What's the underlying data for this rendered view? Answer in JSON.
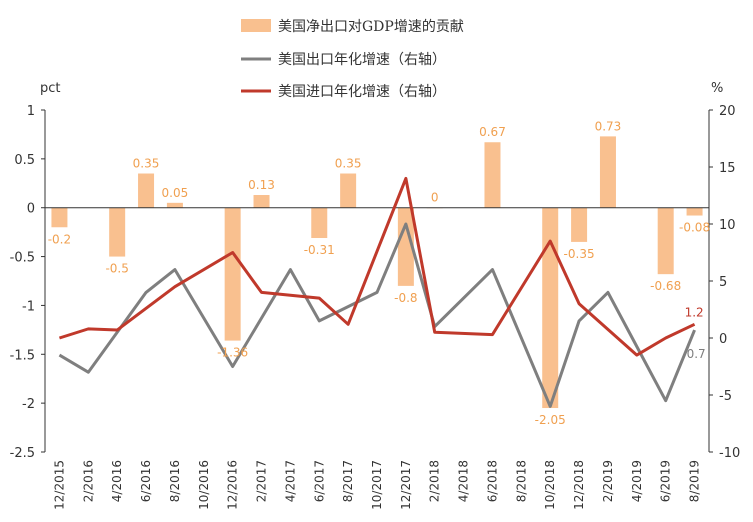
{
  "chart_data": {
    "type": "bar+line",
    "categories": [
      "12/2015",
      "2/2016",
      "4/2016",
      "6/2016",
      "8/2016",
      "10/2016",
      "12/2016",
      "2/2017",
      "4/2017",
      "6/2017",
      "8/2017",
      "10/2017",
      "12/2017",
      "2/2018",
      "4/2018",
      "6/2018",
      "8/2018",
      "10/2018",
      "12/2018",
      "2/2019",
      "4/2019",
      "6/2019",
      "8/2019"
    ],
    "left_axis": {
      "unit": "pct",
      "ylim": [
        -2.5,
        1
      ],
      "ticks": [
        "1",
        "0.5",
        "0",
        "-0.5",
        "-1",
        "-1.5",
        "-2",
        "-2.5"
      ]
    },
    "right_axis": {
      "unit": "%",
      "ylim": [
        -10,
        20
      ],
      "ticks": [
        "20",
        "15",
        "10",
        "5",
        "0",
        "-5",
        "-10"
      ]
    },
    "series": [
      {
        "name": "美国净出口对GDP增速的贡献",
        "kind": "bar",
        "axis": "left",
        "color": "#f9c08f",
        "label_color": "#f0a050",
        "values": [
          -0.2,
          null,
          -0.5,
          0.35,
          0.05,
          null,
          -1.36,
          0.13,
          null,
          -0.31,
          0.35,
          null,
          -0.8,
          0,
          null,
          0.67,
          null,
          -2.05,
          -0.35,
          0.73,
          null,
          -0.68,
          -0.08
        ],
        "labels": [
          "-0.2",
          "",
          "-0.5",
          "0.35",
          "0.05",
          "",
          "-1.36",
          "0.13",
          "",
          "-0.31",
          "0.35",
          "",
          "-0.8",
          "0",
          "",
          "0.67",
          "",
          "-2.05",
          "-0.35",
          "0.73",
          "",
          "-0.68",
          "-0.08"
        ]
      },
      {
        "name": "美国出口年化增速（右轴）",
        "kind": "line",
        "axis": "right",
        "color": "#7f7f7f",
        "values": [
          -1.5,
          -3,
          null,
          4,
          6,
          null,
          -2.5,
          null,
          6,
          1.5,
          null,
          4,
          10,
          1,
          null,
          6,
          null,
          -6,
          1.5,
          4,
          null,
          -5.5,
          0.7
        ],
        "end_label": "0.7"
      },
      {
        "name": "美国进口年化增速（右轴）",
        "kind": "line",
        "axis": "right",
        "color": "#c0392b",
        "values": [
          0,
          0.8,
          0.7,
          null,
          4.5,
          null,
          7.5,
          4,
          null,
          3.5,
          1.2,
          null,
          14,
          0.5,
          null,
          0.3,
          null,
          8.5,
          3,
          null,
          -1.5,
          0,
          1.2
        ],
        "end_label": "1.2"
      }
    ],
    "legend": "top-center",
    "grid": false
  }
}
